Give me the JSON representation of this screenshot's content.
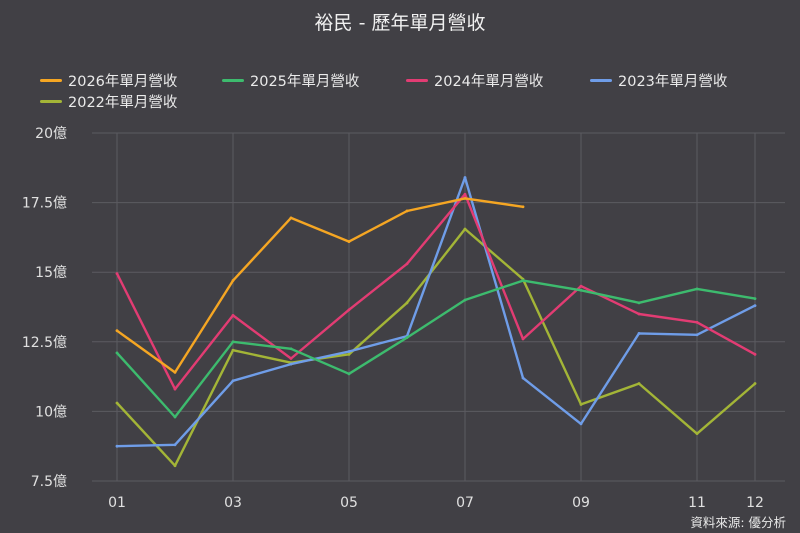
{
  "chart_data": {
    "type": "line",
    "title": "裕民 - 歷年單月營收",
    "source": "資料來源: 優分析",
    "x": [
      "01",
      "02",
      "03",
      "04",
      "05",
      "06",
      "07",
      "08",
      "09",
      "10",
      "11",
      "12"
    ],
    "x_tick_labels": [
      "01",
      "",
      "03",
      "",
      "05",
      "",
      "07",
      "",
      "09",
      "",
      "11",
      "12"
    ],
    "y_tick_labels": [
      "7.5億",
      "10億",
      "12.5億",
      "15億",
      "17.5億",
      "20億"
    ],
    "y_ticks": [
      7.5,
      10,
      12.5,
      15,
      17.5,
      20
    ],
    "ylim": [
      7.5,
      20
    ],
    "y_unit": "億",
    "grid": true,
    "legend_position": "top",
    "series": [
      {
        "name": "2026年單月營收",
        "color": "#f5a623",
        "values": [
          12.9,
          11.4,
          14.7,
          16.95,
          16.1,
          17.2,
          17.65,
          17.35,
          null,
          null,
          null,
          null
        ]
      },
      {
        "name": "2025年單月營收",
        "color": "#3dbb6e",
        "values": [
          12.1,
          9.8,
          12.5,
          12.25,
          11.35,
          12.65,
          14.0,
          14.7,
          14.35,
          13.9,
          14.4,
          14.05
        ]
      },
      {
        "name": "2024年單月營收",
        "color": "#e23c73",
        "values": [
          14.95,
          10.8,
          13.45,
          11.9,
          13.65,
          15.3,
          17.8,
          12.6,
          14.5,
          13.5,
          13.2,
          12.05
        ]
      },
      {
        "name": "2023年單月營收",
        "color": "#6f9de8",
        "values": [
          8.75,
          8.8,
          11.1,
          11.7,
          12.15,
          12.7,
          18.4,
          11.2,
          9.55,
          12.8,
          12.75,
          13.8
        ]
      },
      {
        "name": "2022年單月營收",
        "color": "#a3b537",
        "values": [
          10.3,
          8.05,
          12.2,
          11.75,
          12.05,
          13.9,
          16.55,
          14.75,
          10.25,
          11.0,
          9.2,
          11.0
        ]
      }
    ]
  }
}
